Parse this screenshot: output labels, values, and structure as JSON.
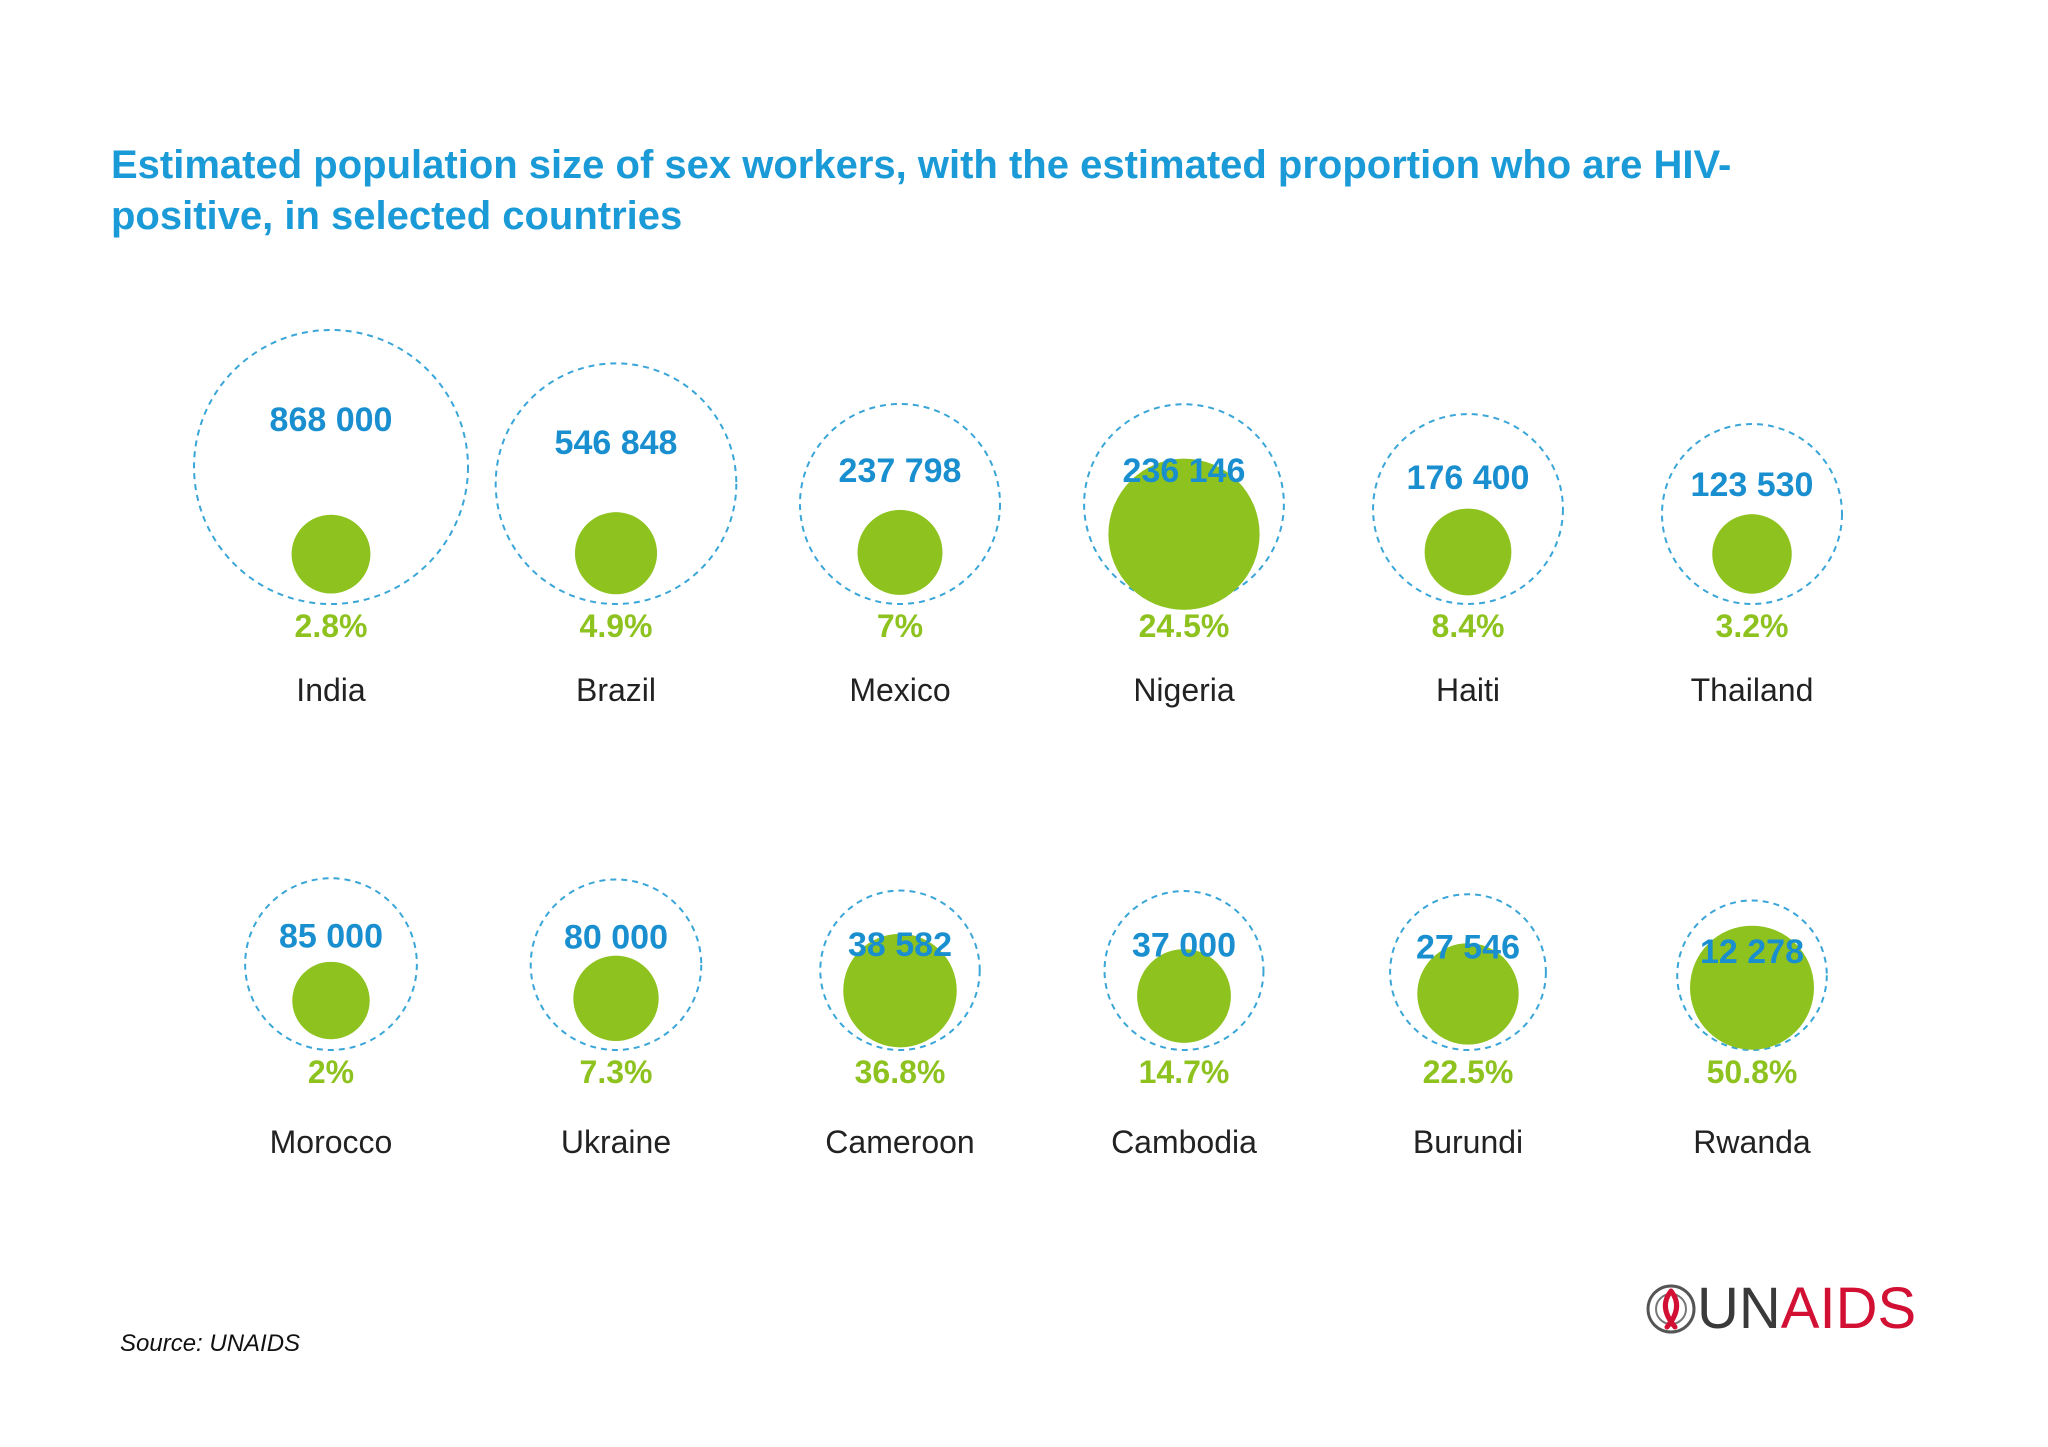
{
  "title": "Estimated population size of sex workers, with the estimated proportion who are HIV-positive, in selected countries",
  "source": "Source: UNAIDS",
  "logo": {
    "prefix": "UN",
    "suffix": "AIDS",
    "icon": "unaids-emblem-icon"
  },
  "colors": {
    "title": "#1a9ad6",
    "population": "#1a8fd0",
    "hiv": "#8dc21f",
    "outline": "#3aa6d8",
    "logo": "#d21034"
  },
  "chart_data": {
    "type": "bubble",
    "categories": [
      "India",
      "Brazil",
      "Mexico",
      "Nigeria",
      "Haiti",
      "Thailand",
      "Morocco",
      "Ukraine",
      "Cameroon",
      "Cambodia",
      "Burundi",
      "Rwanda"
    ],
    "series": [
      {
        "name": "",
        "values": [
          "868 000",
          "546 848",
          "237 798",
          "236 146",
          "176 400",
          "123 530",
          "85 000",
          "80 000",
          "38 582",
          "37 000",
          "27 546",
          "12 278"
        ]
      },
      {
        "name": "",
        "values": [
          "2.8%",
          "4.9%",
          "7%",
          "24.5%",
          "8.4%",
          "3.2%",
          "2%",
          "7.3%",
          "36.8%",
          "14.7%",
          "22.5%",
          "50.8%"
        ]
      }
    ],
    "population": [
      868000,
      546848,
      237798,
      236146,
      176400,
      123530,
      85000,
      80000,
      38582,
      37000,
      27546,
      12278
    ],
    "hiv_percent": [
      2.8,
      4.9,
      7,
      24.5,
      8.4,
      3.2,
      2,
      7.3,
      36.8,
      14.7,
      22.5,
      50.8
    ]
  }
}
